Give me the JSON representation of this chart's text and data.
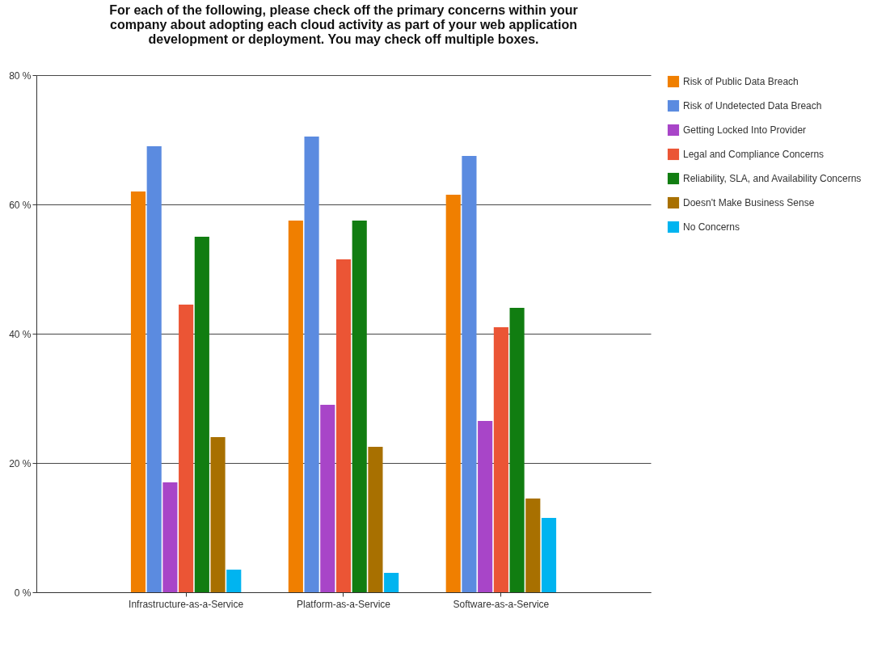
{
  "chart_data": {
    "type": "bar",
    "title": "For each of the following, please check off the primary concerns within your company about adopting each cloud activity as part of your web application development or deployment. You may check off multiple boxes.",
    "categories": [
      "Infrastructure-as-a-Service",
      "Platform-as-a-Service",
      "Software-as-a-Service"
    ],
    "series": [
      {
        "name": "Risk of Public Data Breach",
        "color": "#f07f00",
        "values": [
          62,
          57.5,
          61.5
        ]
      },
      {
        "name": "Risk of Undetected Data Breach",
        "color": "#5b8be0",
        "values": [
          69,
          70.5,
          67.5
        ]
      },
      {
        "name": "Getting Locked Into Provider",
        "color": "#a845c8",
        "values": [
          17,
          29,
          26.5
        ]
      },
      {
        "name": "Legal and Compliance Concerns",
        "color": "#eb5535",
        "values": [
          44.5,
          51.5,
          41
        ]
      },
      {
        "name": "Reliability, SLA, and Availability Concerns",
        "color": "#117d11",
        "values": [
          55,
          57.5,
          44
        ]
      },
      {
        "name": "Doesn't Make Business Sense",
        "color": "#a87000",
        "values": [
          24,
          22.5,
          14.5
        ]
      },
      {
        "name": "No Concerns",
        "color": "#00b4f0",
        "values": [
          3.5,
          3,
          11.5
        ]
      }
    ],
    "ylim": [
      0,
      80
    ],
    "yticks": [
      {
        "value": 0,
        "label": "0 %"
      },
      {
        "value": 20,
        "label": "20 %"
      },
      {
        "value": 40,
        "label": "40 %"
      },
      {
        "value": 60,
        "label": "60 %"
      },
      {
        "value": 80,
        "label": "80 %"
      }
    ],
    "grid": "y",
    "legend": "right"
  }
}
